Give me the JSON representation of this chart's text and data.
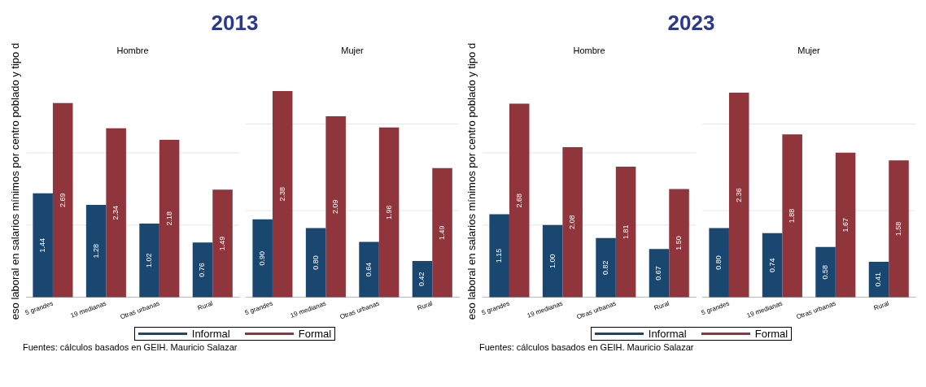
{
  "chart_data": [
    {
      "type": "bar",
      "subtitle": "2013",
      "title": "Hombre",
      "ylabel": "eso laboral en salarios mínimos por centro poblado y  tipo d",
      "categories": [
        "5 grandes",
        "19 medianas",
        "Otras urbanas",
        "Rural"
      ],
      "tick_labels": "x",
      "legend": "bottom",
      "annotations": [
        "Fuentes: cálculos basados en GEIH. Mauricio Salazar"
      ],
      "ref_lines": [
        {
          "axis": "y",
          "value": 1,
          "color": "#e6e6e6"
        },
        {
          "axis": "y",
          "value": 2,
          "color": "#e6e6e6"
        }
      ],
      "series": [
        {
          "name": "Informal",
          "color": "#1a476f",
          "values": [
            1.44,
            1.28,
            1.02,
            0.76
          ],
          "value_labels": [
            "1.44",
            "1.28",
            "1.02",
            "0.76"
          ]
        },
        {
          "name": "Formal",
          "color": "#90353b",
          "values": [
            2.69,
            2.34,
            2.18,
            1.49
          ],
          "value_labels": [
            "2.69",
            "2.34",
            "2.18",
            "1.49"
          ]
        }
      ]
    },
    {
      "type": "bar",
      "title": "Mujer",
      "categories": [
        "5 grandes",
        "19 medianas",
        "Otras urbanas",
        "Rural"
      ],
      "tick_labels": "x",
      "legend": "bottom",
      "ref_lines": [
        {
          "axis": "y",
          "value": 1,
          "color": "#e6e6e6"
        },
        {
          "axis": "y",
          "value": 2,
          "color": "#e6e6e6"
        }
      ],
      "series": [
        {
          "name": "Informal",
          "color": "#1a476f",
          "values": [
            0.9,
            0.8,
            0.64,
            0.42
          ],
          "value_labels": [
            "0.90",
            "0.80",
            "0.64",
            "0.42"
          ]
        },
        {
          "name": "Formal",
          "color": "#90353b",
          "values": [
            2.38,
            2.09,
            1.96,
            1.49
          ],
          "value_labels": [
            "2.38",
            "2.09",
            "1.96",
            "1.49"
          ]
        }
      ]
    },
    {
      "type": "bar",
      "subtitle": "2023",
      "title": "Hombre",
      "ylabel": "eso laboral en salarios mínimos por centro poblado y  tipo d",
      "categories": [
        "5 grandes",
        "19 medianas",
        "Otras urbanas",
        "Rural"
      ],
      "tick_labels": "x",
      "legend": "bottom",
      "annotations": [
        "Fuentes: cálculos basados en GEIH. Mauricio Salazar"
      ],
      "ref_lines": [
        {
          "axis": "y",
          "value": 1,
          "color": "#e6e6e6"
        },
        {
          "axis": "y",
          "value": 2,
          "color": "#e6e6e6"
        }
      ],
      "series": [
        {
          "name": "Informal",
          "color": "#1a476f",
          "values": [
            1.15,
            1.0,
            0.82,
            0.67
          ],
          "value_labels": [
            "1.15",
            "1.00",
            "0.82",
            "0.67"
          ]
        },
        {
          "name": "Formal",
          "color": "#90353b",
          "values": [
            2.68,
            2.08,
            1.81,
            1.5
          ],
          "value_labels": [
            "2.68",
            "2.08",
            "1.81",
            "1.50"
          ]
        }
      ]
    },
    {
      "type": "bar",
      "title": "Mujer",
      "categories": [
        "5 grandes",
        "19 medianas",
        "Otras urbanas",
        "Rural"
      ],
      "tick_labels": "x",
      "legend": "bottom",
      "ref_lines": [
        {
          "axis": "y",
          "value": 1,
          "color": "#e6e6e6"
        },
        {
          "axis": "y",
          "value": 2,
          "color": "#e6e6e6"
        }
      ],
      "series": [
        {
          "name": "Informal",
          "color": "#1a476f",
          "values": [
            0.8,
            0.74,
            0.58,
            0.41
          ],
          "value_labels": [
            "0.80",
            "0.74",
            "0.58",
            "0.41"
          ]
        },
        {
          "name": "Formal",
          "color": "#90353b",
          "values": [
            2.36,
            1.88,
            1.67,
            1.58
          ],
          "value_labels": [
            "2.36",
            "1.88",
            "1.67",
            "1.58"
          ]
        }
      ]
    }
  ]
}
